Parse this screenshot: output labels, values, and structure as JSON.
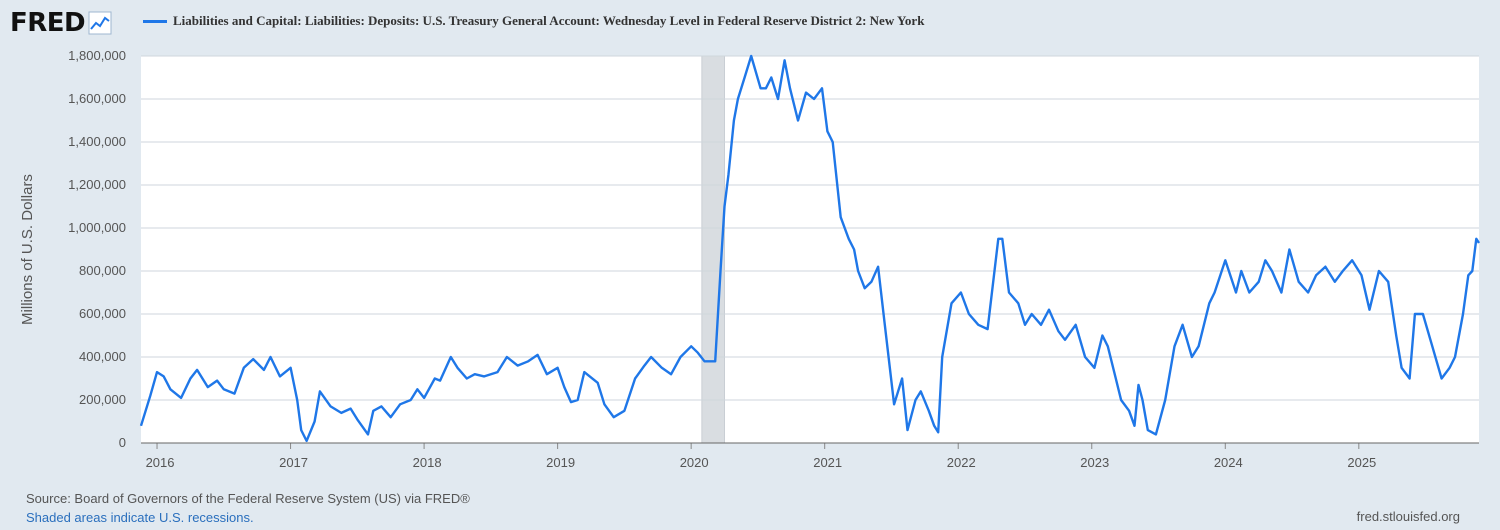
{
  "header": {
    "logo_text": "FRED",
    "logo_icon": "line-chart-icon"
  },
  "colors": {
    "background": "#e1e9f0",
    "plot_background": "#ffffff",
    "series": "#1f77e8",
    "recession": "#d9dde1",
    "grid": "#cfd6dc"
  },
  "chart_data": {
    "type": "line",
    "title": "Liabilities and Capital: Liabilities: Deposits: U.S. Treasury General Account: Wednesday Level in Federal Reserve District 2: New York",
    "ylabel": "Millions of U.S. Dollars",
    "xlabel": "",
    "xlim": [
      2015.88,
      2025.9
    ],
    "ylim": [
      0,
      1800000
    ],
    "grid": true,
    "legend_position": "top",
    "x_ticks": [
      "2016",
      "2017",
      "2018",
      "2019",
      "2020",
      "2021",
      "2022",
      "2023",
      "2024",
      "2025"
    ],
    "y_ticks": [
      "0",
      "200,000",
      "400,000",
      "600,000",
      "800,000",
      "1,000,000",
      "1,200,000",
      "1,400,000",
      "1,600,000",
      "1,800,000"
    ],
    "recessions": [
      {
        "start": 2020.08,
        "end": 2020.25
      }
    ],
    "series": [
      {
        "name": "Liabilities and Capital: Liabilities: Deposits: U.S. Treasury General Account: Wednesday Level in Federal Reserve District 2: New York",
        "x": [
          2015.88,
          2015.95,
          2016.0,
          2016.05,
          2016.1,
          2016.18,
          2016.25,
          2016.3,
          2016.38,
          2016.45,
          2016.5,
          2016.58,
          2016.65,
          2016.72,
          2016.8,
          2016.85,
          2016.92,
          2017.0,
          2017.05,
          2017.08,
          2017.12,
          2017.18,
          2017.22,
          2017.3,
          2017.38,
          2017.45,
          2017.5,
          2017.58,
          2017.62,
          2017.68,
          2017.75,
          2017.82,
          2017.9,
          2017.95,
          2018.0,
          2018.08,
          2018.12,
          2018.2,
          2018.25,
          2018.32,
          2018.38,
          2018.45,
          2018.55,
          2018.62,
          2018.7,
          2018.78,
          2018.85,
          2018.92,
          2019.0,
          2019.05,
          2019.1,
          2019.15,
          2019.2,
          2019.3,
          2019.35,
          2019.42,
          2019.5,
          2019.58,
          2019.65,
          2019.7,
          2019.78,
          2019.85,
          2019.92,
          2020.0,
          2020.05,
          2020.1,
          2020.18,
          2020.22,
          2020.25,
          2020.28,
          2020.32,
          2020.35,
          2020.4,
          2020.45,
          2020.52,
          2020.56,
          2020.6,
          2020.65,
          2020.7,
          2020.74,
          2020.8,
          2020.86,
          2020.92,
          2020.98,
          2021.02,
          2021.06,
          2021.12,
          2021.18,
          2021.22,
          2021.25,
          2021.3,
          2021.35,
          2021.4,
          2021.45,
          2021.52,
          2021.58,
          2021.62,
          2021.68,
          2021.72,
          2021.78,
          2021.82,
          2021.85,
          2021.88,
          2021.95,
          2022.02,
          2022.08,
          2022.15,
          2022.22,
          2022.3,
          2022.33,
          2022.38,
          2022.45,
          2022.5,
          2022.55,
          2022.62,
          2022.68,
          2022.75,
          2022.8,
          2022.88,
          2022.95,
          2023.02,
          2023.08,
          2023.12,
          2023.18,
          2023.22,
          2023.28,
          2023.32,
          2023.35,
          2023.38,
          2023.42,
          2023.48,
          2023.55,
          2023.62,
          2023.68,
          2023.75,
          2023.8,
          2023.88,
          2023.92,
          2024.0,
          2024.08,
          2024.12,
          2024.18,
          2024.25,
          2024.3,
          2024.35,
          2024.42,
          2024.48,
          2024.55,
          2024.62,
          2024.68,
          2024.75,
          2024.82,
          2024.88,
          2024.95,
          2025.02,
          2025.08,
          2025.15,
          2025.22,
          2025.28,
          2025.32,
          2025.38,
          2025.42,
          2025.48,
          2025.55,
          2025.62,
          2025.68,
          2025.72,
          2025.78,
          2025.82,
          2025.85,
          2025.88,
          2025.9
        ],
        "values": [
          80000,
          220000,
          330000,
          310000,
          250000,
          210000,
          300000,
          340000,
          260000,
          290000,
          250000,
          230000,
          350000,
          390000,
          340000,
          400000,
          310000,
          350000,
          200000,
          60000,
          10000,
          100000,
          240000,
          170000,
          140000,
          160000,
          110000,
          40000,
          150000,
          170000,
          120000,
          180000,
          200000,
          250000,
          210000,
          300000,
          290000,
          400000,
          350000,
          300000,
          320000,
          310000,
          330000,
          400000,
          360000,
          380000,
          410000,
          320000,
          350000,
          260000,
          190000,
          200000,
          330000,
          280000,
          180000,
          120000,
          150000,
          300000,
          360000,
          400000,
          350000,
          320000,
          400000,
          450000,
          420000,
          380000,
          380000,
          800000,
          1100000,
          1250000,
          1500000,
          1600000,
          1700000,
          1800000,
          1650000,
          1650000,
          1700000,
          1600000,
          1780000,
          1650000,
          1500000,
          1630000,
          1600000,
          1650000,
          1450000,
          1400000,
          1050000,
          950000,
          900000,
          800000,
          720000,
          750000,
          820000,
          550000,
          180000,
          300000,
          60000,
          200000,
          240000,
          150000,
          80000,
          50000,
          400000,
          650000,
          700000,
          600000,
          550000,
          530000,
          950000,
          950000,
          700000,
          650000,
          550000,
          600000,
          550000,
          620000,
          520000,
          480000,
          550000,
          400000,
          350000,
          500000,
          450000,
          300000,
          200000,
          150000,
          80000,
          270000,
          200000,
          60000,
          40000,
          200000,
          450000,
          550000,
          400000,
          450000,
          650000,
          700000,
          850000,
          700000,
          800000,
          700000,
          750000,
          850000,
          800000,
          700000,
          900000,
          750000,
          700000,
          780000,
          820000,
          750000,
          800000,
          850000,
          780000,
          620000,
          800000,
          750000,
          500000,
          350000,
          300000,
          600000,
          600000,
          450000,
          300000,
          350000,
          400000,
          600000,
          780000,
          800000,
          950000,
          930000
        ]
      }
    ]
  },
  "footer": {
    "source": "Source: Board of Governors of the Federal Reserve System (US) via FRED®",
    "note": "Shaded areas indicate U.S. recessions.",
    "url": "fred.stlouisfed.org"
  }
}
